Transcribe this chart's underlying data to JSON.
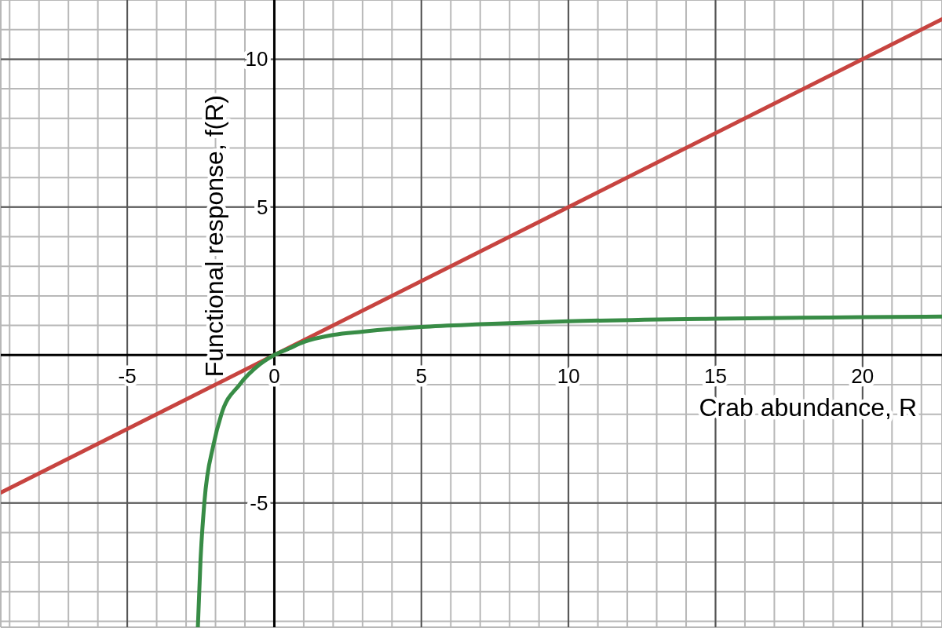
{
  "chart_data": {
    "type": "line",
    "xlabel": "Crab abundance, R",
    "ylabel": "Functional response, f(R)",
    "xlim": [
      -9.3,
      22.7
    ],
    "ylim": [
      -9.2,
      12
    ],
    "xticks": [
      {
        "value": -9,
        "label": null
      },
      {
        "value": -8,
        "label": null
      },
      {
        "value": -7,
        "label": null
      },
      {
        "value": -6,
        "label": null
      },
      -5,
      {
        "value": -4,
        "label": null
      },
      {
        "value": -3,
        "label": null
      },
      {
        "value": -2,
        "label": null
      },
      {
        "value": -1,
        "label": null
      },
      0,
      {
        "value": 1,
        "label": null
      },
      {
        "value": 2,
        "label": null
      },
      {
        "value": 3,
        "label": null
      },
      {
        "value": 4,
        "label": null
      },
      5,
      {
        "value": 6,
        "label": null
      },
      {
        "value": 7,
        "label": null
      },
      {
        "value": 8,
        "label": null
      },
      {
        "value": 9,
        "label": null
      },
      10,
      {
        "value": 11,
        "label": null
      },
      {
        "value": 12,
        "label": null
      },
      {
        "value": 13,
        "label": null
      },
      {
        "value": 14,
        "label": null
      },
      15,
      {
        "value": 16,
        "label": null
      },
      {
        "value": 17,
        "label": null
      },
      {
        "value": 18,
        "label": null
      },
      {
        "value": 19,
        "label": null
      },
      20,
      {
        "value": 21,
        "label": null
      },
      {
        "value": 22,
        "label": null
      }
    ],
    "yticks": [
      {
        "value": -9,
        "label": null
      },
      {
        "value": -8,
        "label": null
      },
      {
        "value": -7,
        "label": null
      },
      {
        "value": -6,
        "label": null
      },
      -5,
      {
        "value": -4,
        "label": null
      },
      {
        "value": -3,
        "label": null
      },
      {
        "value": -2,
        "label": null
      },
      {
        "value": -1,
        "label": null
      },
      {
        "value": 1,
        "label": null
      },
      {
        "value": 2,
        "label": null
      },
      {
        "value": 3,
        "label": null
      },
      {
        "value": 4,
        "label": null
      },
      5,
      {
        "value": 6,
        "label": null
      },
      {
        "value": 7,
        "label": null
      },
      {
        "value": 8,
        "label": null
      },
      {
        "value": 9,
        "label": null
      },
      10,
      {
        "value": 11,
        "label": null
      }
    ],
    "grid": true,
    "marker": "none",
    "line_style": "solid",
    "series": [
      {
        "color": "#c74440",
        "x": [
          -9.3,
          22.7
        ],
        "values": [
          -4.65,
          11.35
        ]
      },
      {
        "color": "#388c46",
        "x": [
          -2.6,
          -2.51,
          -2.38,
          -2.07,
          -1.8,
          -1.18,
          -0.5,
          0,
          0.5,
          1,
          2,
          3,
          4,
          5,
          7,
          10,
          15,
          20,
          22.7
        ],
        "values": [
          -9.2,
          -6.95,
          -5,
          -3.04,
          -2,
          -1,
          -0.32,
          0,
          0.22,
          0.44,
          0.68,
          0.79,
          0.88,
          0.95,
          1.04,
          1.14,
          1.23,
          1.28,
          1.3
        ]
      }
    ]
  }
}
